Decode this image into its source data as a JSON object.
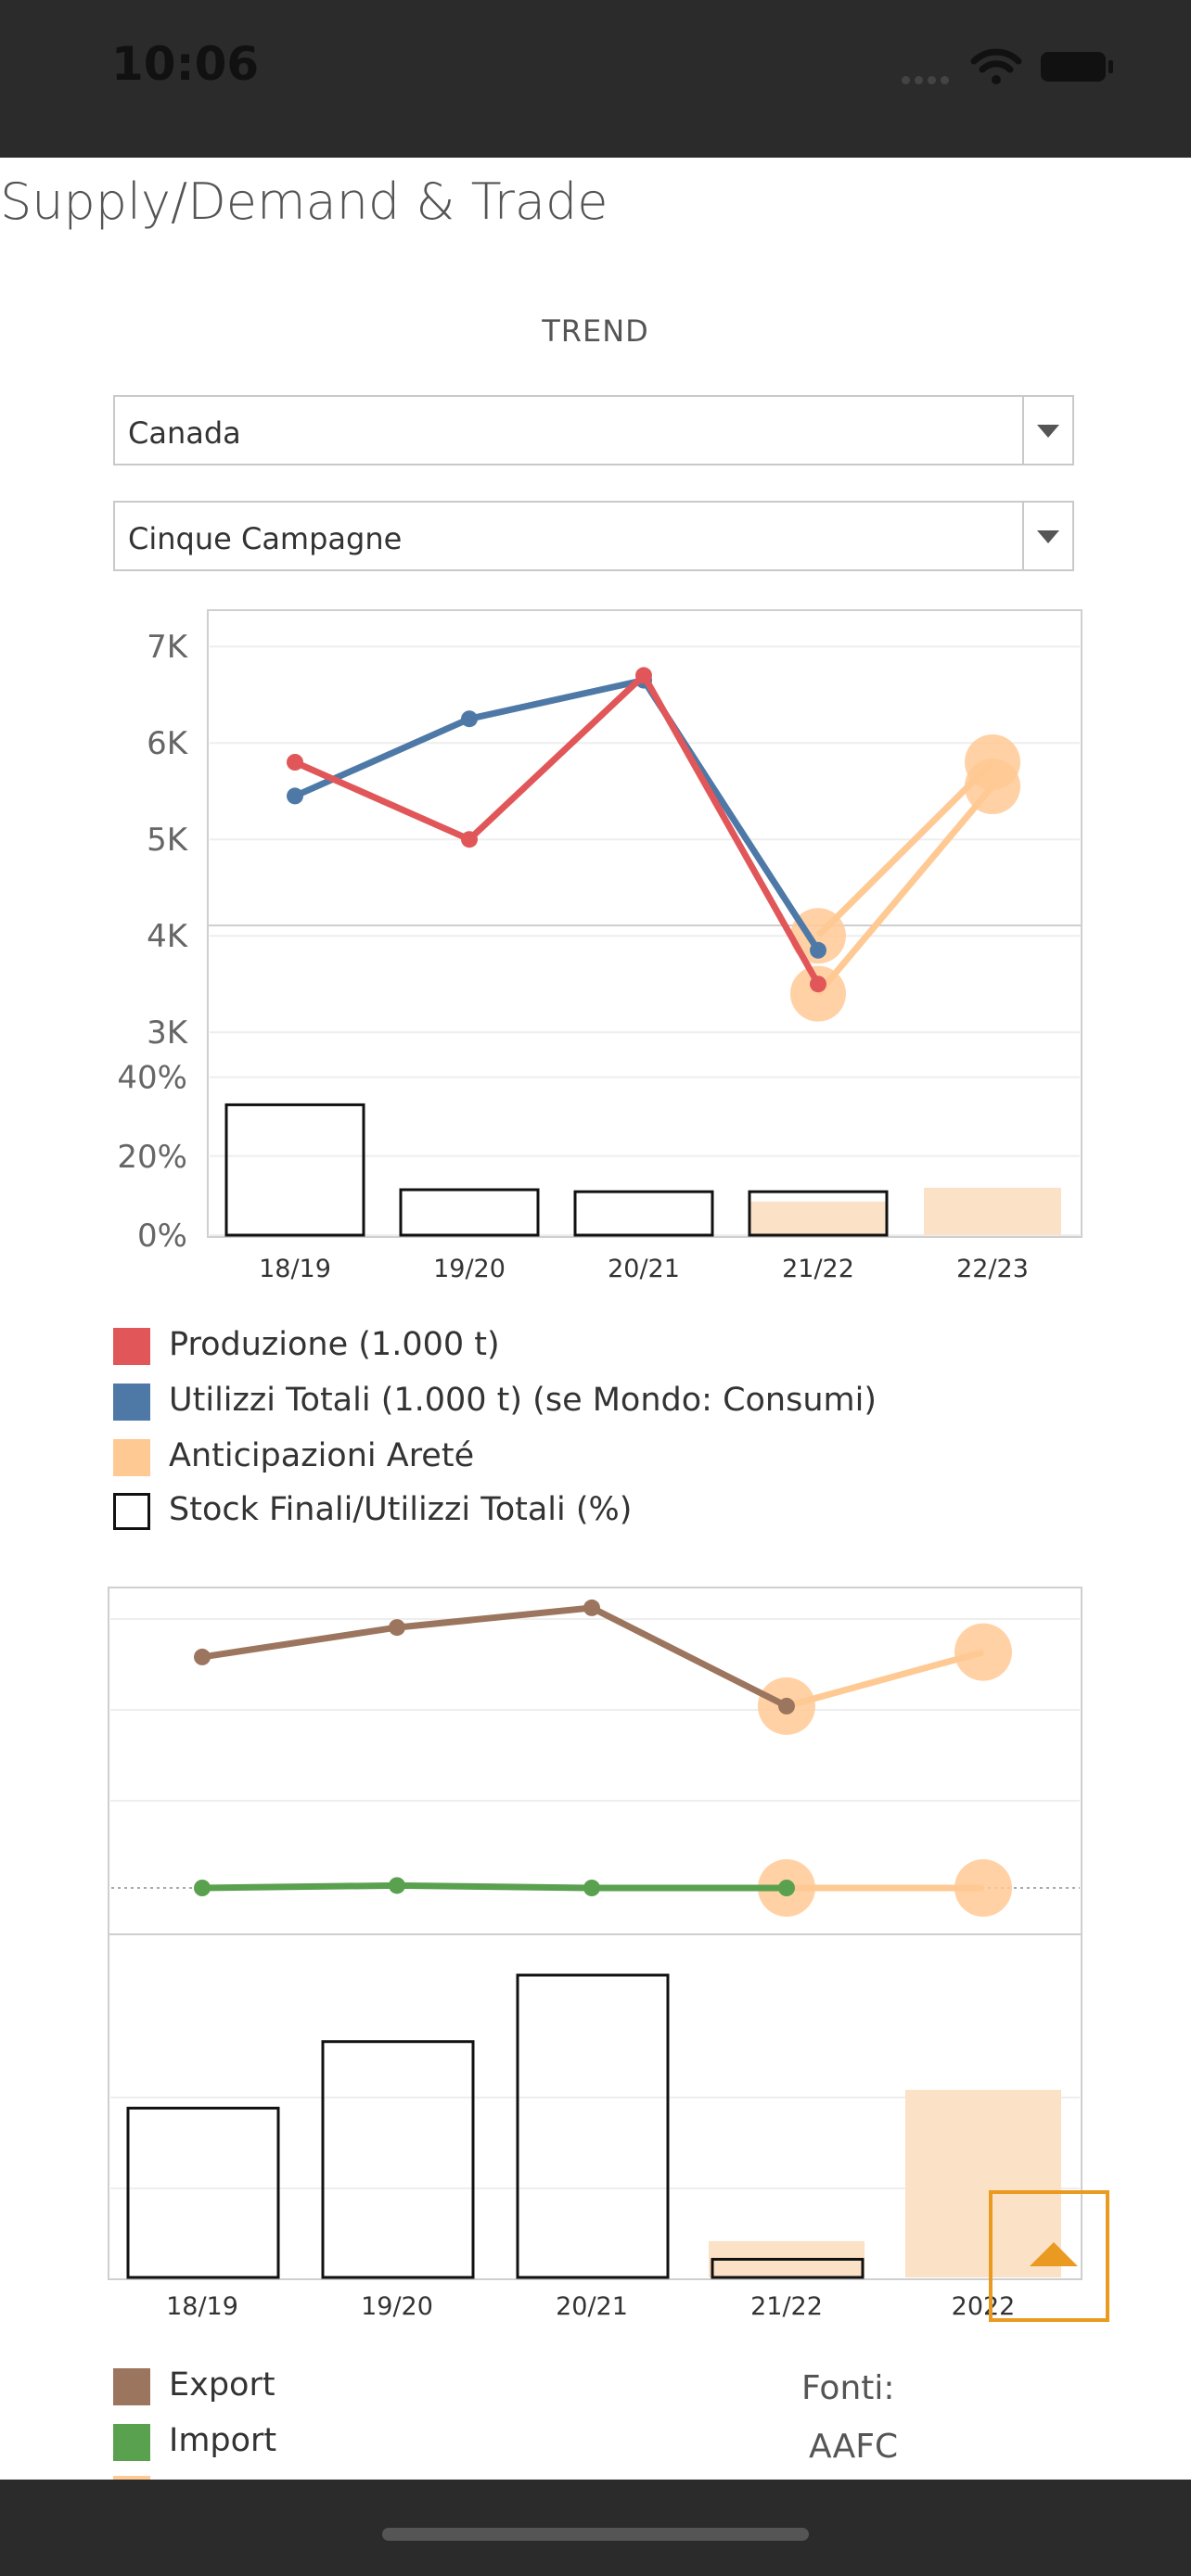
{
  "status_bar": {
    "time": "10:06"
  },
  "page": {
    "title": "Supply/Demand & Trade",
    "section_title": "TREND"
  },
  "filters": {
    "country": "Canada",
    "period": "Cinque Campagne"
  },
  "colors": {
    "produzione": "#e15759",
    "utilizzi": "#4e79a7",
    "anticipazioni": "#ffc994",
    "export": "#9c755f",
    "import": "#59a14f",
    "forecast_fill": "#fbe1c6"
  },
  "chart_data": [
    {
      "type": "line",
      "categories": [
        "18/19",
        "19/20",
        "20/21",
        "21/22",
        "22/23"
      ],
      "y_tick_labels": [
        "7K",
        "6K",
        "5K",
        "4K",
        "3K"
      ],
      "series": [
        {
          "name": "Produzione (1.000 t)",
          "values": [
            5800,
            5000,
            6700,
            3500,
            null
          ]
        },
        {
          "name": "Utilizzi Totali (1.000 t) (se Mondo: Consumi)",
          "values": [
            5450,
            6250,
            6650,
            3850,
            null
          ]
        },
        {
          "name": "Anticipazioni Areté",
          "segments": [
            [
              3400,
              5550
            ],
            [
              4000,
              5800
            ]
          ]
        }
      ]
    },
    {
      "type": "bar",
      "categories": [
        "18/19",
        "19/20",
        "20/21",
        "21/22",
        "22/23"
      ],
      "y_tick_labels": [
        "40%",
        "20%",
        "0%"
      ],
      "ylim": [
        0,
        45
      ],
      "series": [
        {
          "name": "Stock Finali/Utilizzi Totali (%)",
          "values": [
            33,
            11.5,
            11,
            11,
            null
          ]
        },
        {
          "name": "Anticipazioni Areté",
          "values": [
            null,
            null,
            null,
            8.5,
            12
          ]
        }
      ],
      "x_tick_labels": [
        "18/19",
        "19/20",
        "20/21",
        "21/22",
        "22/23"
      ]
    },
    {
      "type": "line",
      "categories": [
        "18/19",
        "19/20",
        "20/21",
        "21/22",
        "2022"
      ],
      "series": [
        {
          "name": "Export",
          "values": [
            57,
            63,
            67,
            47,
            null
          ]
        },
        {
          "name": "Import",
          "values": [
            10,
            10.5,
            10,
            10,
            null
          ]
        },
        {
          "name": "Anticipazioni Areté",
          "segments": [
            [
              47,
              58
            ],
            [
              10,
              10
            ]
          ]
        }
      ]
    },
    {
      "type": "bar",
      "categories": [
        "18/19",
        "19/20",
        "20/21",
        "21/22",
        "2022"
      ],
      "series": [
        {
          "values": [
            28,
            39,
            50,
            3,
            null
          ]
        },
        {
          "name": "Anticipazioni Areté",
          "values": [
            null,
            null,
            null,
            6,
            31
          ]
        }
      ],
      "x_tick_labels": [
        "18/19",
        "19/20",
        "20/21",
        "21/22",
        "2022"
      ]
    }
  ],
  "legend_top": [
    {
      "label": "Produzione (1.000 t)",
      "color": "#e15759"
    },
    {
      "label": "Utilizzi Totali (1.000 t) (se Mondo: Consumi)",
      "color": "#4e79a7"
    },
    {
      "label": "Anticipazioni Areté",
      "color": "#ffc994"
    },
    {
      "label": "Stock Finali/Utilizzi Totali (%)",
      "color": "#ffffff"
    }
  ],
  "legend_bottom": [
    {
      "label": "Export",
      "color": "#9c755f"
    },
    {
      "label": "Import",
      "color": "#59a14f"
    }
  ],
  "sources": {
    "label": "Fonti:",
    "value": "AAFC"
  }
}
